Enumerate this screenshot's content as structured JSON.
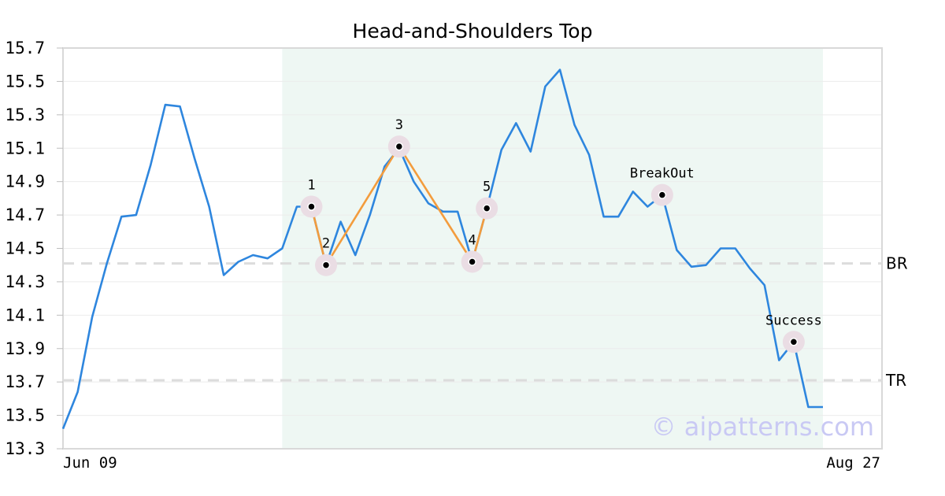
{
  "chart_data": {
    "type": "line",
    "title": "Head-and-Shoulders Top",
    "xlabel": "",
    "ylabel": "",
    "ylim": [
      13.3,
      15.7
    ],
    "yticks": [
      "13.3",
      "13.5",
      "13.7",
      "13.9",
      "14.1",
      "14.3",
      "14.5",
      "14.7",
      "14.9",
      "15.1",
      "15.3",
      "15.5",
      "15.7"
    ],
    "x_start_label": "Jun 09",
    "x_end_label": "Aug 27",
    "grid": true,
    "series": [
      {
        "values": [
          13.42,
          13.64,
          14.09,
          14.41,
          14.69,
          14.7,
          15.0,
          15.36,
          15.35,
          15.04,
          14.75,
          14.34,
          14.42,
          14.46,
          14.44,
          14.5,
          14.75,
          14.75,
          14.4,
          14.66,
          14.46,
          14.7,
          14.99,
          15.1,
          14.9,
          14.77,
          14.72,
          14.72,
          14.42,
          14.74,
          15.09,
          15.25,
          15.08,
          15.47,
          15.57,
          15.24,
          15.06,
          14.69,
          14.69,
          14.84,
          14.75,
          14.82,
          14.49,
          14.39,
          14.4,
          14.5,
          14.5,
          14.38,
          14.28,
          13.83,
          13.94,
          13.55,
          13.55
        ],
        "color": "#2e86de"
      }
    ],
    "highlight_region": {
      "from_index": 15,
      "to_index": 52,
      "color": "#eef7f3"
    },
    "pattern_points": [
      {
        "label": "1",
        "index": 17,
        "value": 14.75
      },
      {
        "label": "2",
        "index": 18,
        "value": 14.4
      },
      {
        "label": "3",
        "index": 23,
        "value": 15.11
      },
      {
        "label": "4",
        "index": 28,
        "value": 14.42
      },
      {
        "label": "5",
        "index": 29,
        "value": 14.74
      }
    ],
    "pattern_color": "#f39c3d",
    "event_points": [
      {
        "label": "BreakOut",
        "index": 41,
        "value": 14.82
      },
      {
        "label": "Success",
        "index": 50,
        "value": 13.94
      }
    ],
    "levels": [
      {
        "label": "BR",
        "value": 14.41
      },
      {
        "label": "TR",
        "value": 13.71
      }
    ],
    "watermark": "© aipatterns.com"
  }
}
